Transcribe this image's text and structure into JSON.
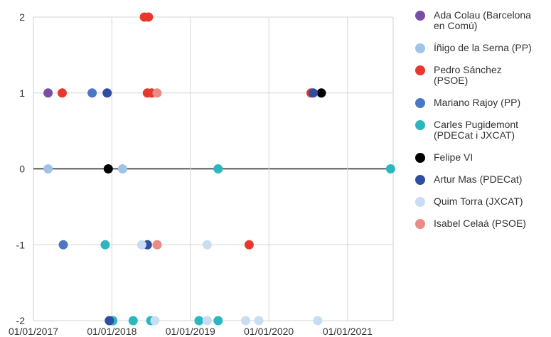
{
  "chart_data": {
    "type": "scatter",
    "title": "",
    "xlabel": "",
    "ylabel": "",
    "x_axis": {
      "type": "date",
      "range": [
        "2017-01-01",
        "2021-08-01"
      ],
      "tick_labels": [
        "01/01/2017",
        "01/01/2018",
        "01/01/2019",
        "01/01/2020",
        "01/01/2021"
      ],
      "tick_dates": [
        "2017-01-01",
        "2018-01-01",
        "2019-01-01",
        "2020-01-01",
        "2021-01-01"
      ]
    },
    "y_axis": {
      "range": [
        -2,
        2
      ],
      "ticks": [
        2,
        1,
        0,
        -1,
        -2
      ],
      "tick_labels": [
        "2",
        "1",
        "0",
        "-1",
        "-2"
      ]
    },
    "grid": true,
    "zero_line": true,
    "legend_position": "right",
    "series": [
      {
        "name": "Ada Colau (Barcelona en Comú)",
        "color": "#7b4ea6",
        "points": [
          [
            "2017-03-10",
            1
          ],
          [
            "2018-01-05",
            -2
          ]
        ]
      },
      {
        "name": "Íñigo de la Serna (PP)",
        "color": "#9fc4e8",
        "points": [
          [
            "2017-03-10",
            0
          ],
          [
            "2018-02-20",
            0
          ],
          [
            "2018-06-15",
            -1
          ]
        ]
      },
      {
        "name": "Pedro Sánchez (PSOE)",
        "color": "#e8372c",
        "points": [
          [
            "2017-05-15",
            1
          ],
          [
            "2018-06-01",
            2
          ],
          [
            "2018-06-20",
            2
          ],
          [
            "2018-06-15",
            1
          ],
          [
            "2018-07-05",
            1
          ],
          [
            "2019-10-01",
            -1
          ],
          [
            "2020-07-15",
            1
          ]
        ]
      },
      {
        "name": "Mariano Rajoy (PP)",
        "color": "#4a78c6",
        "points": [
          [
            "2017-05-20",
            -1
          ],
          [
            "2017-10-01",
            1
          ]
        ]
      },
      {
        "name": "Carles Pugidemont (PDECat i JXCAT)",
        "color": "#2ab7bf",
        "points": [
          [
            "2017-12-01",
            -1
          ],
          [
            "2018-01-01",
            -2
          ],
          [
            "2018-01-05",
            -2
          ],
          [
            "2018-04-10",
            -2
          ],
          [
            "2018-07-01",
            -2
          ],
          [
            "2019-02-10",
            -2
          ],
          [
            "2019-05-10",
            0
          ],
          [
            "2019-05-10",
            -2
          ],
          [
            "2021-07-20",
            0
          ]
        ]
      },
      {
        "name": "Felipe VI",
        "color": "#000000",
        "points": [
          [
            "2017-12-15",
            0
          ],
          [
            "2020-09-01",
            1
          ]
        ]
      },
      {
        "name": "Artur Mas (PDECat)",
        "color": "#2f4ea2",
        "points": [
          [
            "2017-12-10",
            1
          ],
          [
            "2017-12-20",
            -2
          ],
          [
            "2018-06-15",
            -1
          ],
          [
            "2020-07-25",
            1
          ]
        ]
      },
      {
        "name": "Quim Torra (JXCAT)",
        "color": "#c9ddf2",
        "points": [
          [
            "2018-05-20",
            -1
          ],
          [
            "2018-07-20",
            -2
          ],
          [
            "2018-08-01",
            -1
          ],
          [
            "2019-03-20",
            -2
          ],
          [
            "2019-03-20",
            -1
          ],
          [
            "2019-09-15",
            -2
          ],
          [
            "2019-11-15",
            -2
          ],
          [
            "2020-08-15",
            -2
          ]
        ]
      },
      {
        "name": "Isabel Celaá (PSOE)",
        "color": "#eb8b86",
        "points": [
          [
            "2018-07-30",
            1
          ],
          [
            "2018-07-30",
            -1
          ]
        ]
      }
    ],
    "legend": [
      {
        "lines": [
          "Ada Colau (Barcelona",
          "en Comú)"
        ],
        "color": "#7b4ea6"
      },
      {
        "lines": [
          "Íñigo de la Serna (PP)"
        ],
        "color": "#9fc4e8"
      },
      {
        "lines": [
          "Pedro Sánchez",
          "(PSOE)"
        ],
        "color": "#e8372c"
      },
      {
        "lines": [
          "Mariano Rajoy (PP)"
        ],
        "color": "#4a78c6"
      },
      {
        "lines": [
          "Carles Pugidemont",
          "(PDECat i JXCAT)"
        ],
        "color": "#2ab7bf"
      },
      {
        "lines": [
          "Felipe VI"
        ],
        "color": "#000000"
      },
      {
        "lines": [
          "Artur Mas (PDECat)"
        ],
        "color": "#2f4ea2"
      },
      {
        "lines": [
          "Quim Torra (JXCAT)"
        ],
        "color": "#c9ddf2"
      },
      {
        "lines": [
          "Isabel Celaá (PSOE)"
        ],
        "color": "#eb8b86"
      }
    ]
  }
}
